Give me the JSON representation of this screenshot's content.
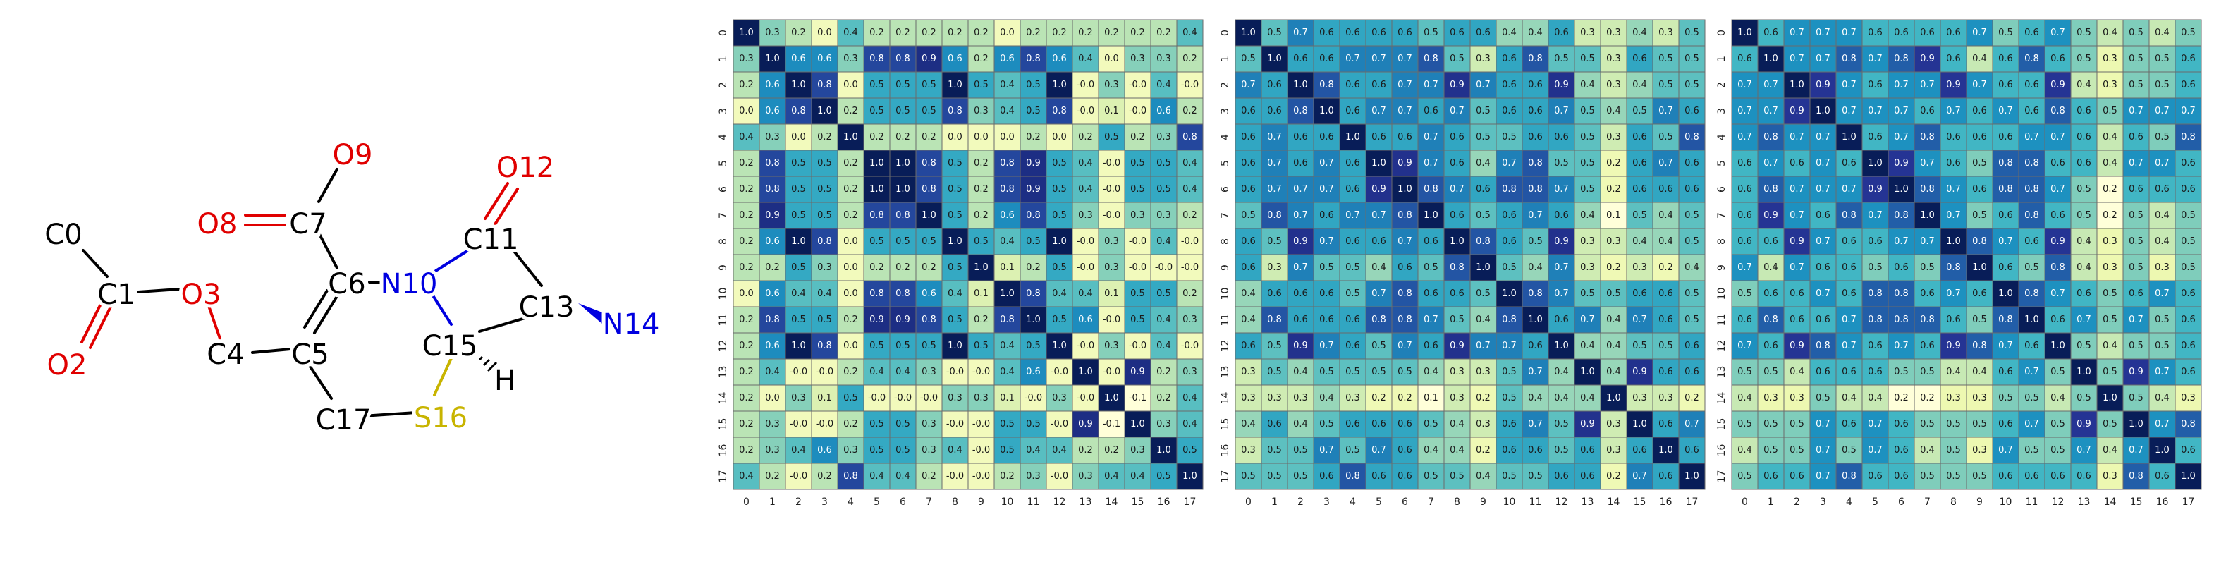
{
  "molecule": {
    "atoms": [
      {
        "label": "C0",
        "color": "#000000"
      },
      {
        "label": "C1",
        "color": "#000000"
      },
      {
        "label": "O2",
        "color": "#e00000"
      },
      {
        "label": "O3",
        "color": "#e00000"
      },
      {
        "label": "C4",
        "color": "#000000"
      },
      {
        "label": "C5",
        "color": "#000000"
      },
      {
        "label": "C6",
        "color": "#000000"
      },
      {
        "label": "C7",
        "color": "#000000"
      },
      {
        "label": "O8",
        "color": "#e00000"
      },
      {
        "label": "O9",
        "color": "#e00000"
      },
      {
        "label": "N10",
        "color": "#0000e0"
      },
      {
        "label": "C11",
        "color": "#000000"
      },
      {
        "label": "O12",
        "color": "#e00000"
      },
      {
        "label": "C13",
        "color": "#000000"
      },
      {
        "label": "N14",
        "color": "#0000e0"
      },
      {
        "label": "C15",
        "color": "#000000"
      },
      {
        "label": "S16",
        "color": "#c8b400"
      },
      {
        "label": "C17",
        "color": "#000000"
      },
      {
        "label": "H",
        "color": "#000000"
      }
    ]
  },
  "chart_data": [
    {
      "type": "heatmap",
      "colormap": "YlGnBu",
      "vmin": -0.1,
      "vmax": 1.0,
      "ticks": [
        "0",
        "1",
        "2",
        "3",
        "4",
        "5",
        "6",
        "7",
        "8",
        "9",
        "10",
        "11",
        "12",
        "13",
        "14",
        "15",
        "16",
        "17"
      ],
      "values": [
        [
          1.0,
          0.3,
          0.2,
          0.0,
          0.4,
          0.2,
          0.2,
          0.2,
          0.2,
          0.2,
          0.0,
          0.2,
          0.2,
          0.2,
          0.2,
          0.2,
          0.2,
          0.4
        ],
        [
          0.3,
          1.0,
          0.6,
          0.6,
          0.3,
          0.8,
          0.8,
          0.9,
          0.6,
          0.2,
          0.6,
          0.8,
          0.6,
          0.4,
          0.0,
          0.3,
          0.3,
          0.2
        ],
        [
          0.2,
          0.6,
          1.0,
          0.8,
          0.0,
          0.5,
          0.5,
          0.5,
          1.0,
          0.5,
          0.4,
          0.5,
          1.0,
          -0.0,
          0.3,
          -0.0,
          0.4,
          -0.0
        ],
        [
          0.0,
          0.6,
          0.8,
          1.0,
          0.2,
          0.5,
          0.5,
          0.5,
          0.8,
          0.3,
          0.4,
          0.5,
          0.8,
          -0.0,
          0.1,
          -0.0,
          0.6,
          0.2
        ],
        [
          0.4,
          0.3,
          0.0,
          0.2,
          1.0,
          0.2,
          0.2,
          0.2,
          0.0,
          0.0,
          0.0,
          0.2,
          0.0,
          0.2,
          0.5,
          0.2,
          0.3,
          0.8
        ],
        [
          0.2,
          0.8,
          0.5,
          0.5,
          0.2,
          1.0,
          1.0,
          0.8,
          0.5,
          0.2,
          0.8,
          0.9,
          0.5,
          0.4,
          -0.0,
          0.5,
          0.5,
          0.4
        ],
        [
          0.2,
          0.8,
          0.5,
          0.5,
          0.2,
          1.0,
          1.0,
          0.8,
          0.5,
          0.2,
          0.8,
          0.9,
          0.5,
          0.4,
          -0.0,
          0.5,
          0.5,
          0.4
        ],
        [
          0.2,
          0.9,
          0.5,
          0.5,
          0.2,
          0.8,
          0.8,
          1.0,
          0.5,
          0.2,
          0.6,
          0.8,
          0.5,
          0.3,
          -0.0,
          0.3,
          0.3,
          0.2
        ],
        [
          0.2,
          0.6,
          1.0,
          0.8,
          0.0,
          0.5,
          0.5,
          0.5,
          1.0,
          0.5,
          0.4,
          0.5,
          1.0,
          -0.0,
          0.3,
          -0.0,
          0.4,
          -0.0
        ],
        [
          0.2,
          0.2,
          0.5,
          0.3,
          0.0,
          0.2,
          0.2,
          0.2,
          0.5,
          1.0,
          0.1,
          0.2,
          0.5,
          -0.0,
          0.3,
          -0.0,
          -0.0,
          -0.0
        ],
        [
          0.0,
          0.6,
          0.4,
          0.4,
          0.0,
          0.8,
          0.8,
          0.6,
          0.4,
          0.1,
          1.0,
          0.8,
          0.4,
          0.4,
          0.1,
          0.5,
          0.5,
          0.2
        ],
        [
          0.2,
          0.8,
          0.5,
          0.5,
          0.2,
          0.9,
          0.9,
          0.8,
          0.5,
          0.2,
          0.8,
          1.0,
          0.5,
          0.6,
          -0.0,
          0.5,
          0.4,
          0.3
        ],
        [
          0.2,
          0.6,
          1.0,
          0.8,
          0.0,
          0.5,
          0.5,
          0.5,
          1.0,
          0.5,
          0.4,
          0.5,
          1.0,
          -0.0,
          0.3,
          -0.0,
          0.4,
          -0.0
        ],
        [
          0.2,
          0.4,
          -0.0,
          -0.0,
          0.2,
          0.4,
          0.4,
          0.3,
          -0.0,
          -0.0,
          0.4,
          0.6,
          -0.0,
          1.0,
          -0.0,
          0.9,
          0.2,
          0.3
        ],
        [
          0.2,
          0.0,
          0.3,
          0.1,
          0.5,
          -0.0,
          -0.0,
          -0.0,
          0.3,
          0.3,
          0.1,
          -0.0,
          0.3,
          -0.0,
          1.0,
          -0.1,
          0.2,
          0.4
        ],
        [
          0.2,
          0.3,
          -0.0,
          -0.0,
          0.2,
          0.5,
          0.5,
          0.3,
          -0.0,
          -0.0,
          0.5,
          0.5,
          -0.0,
          0.9,
          -0.1,
          1.0,
          0.3,
          0.4
        ],
        [
          0.2,
          0.3,
          0.4,
          0.6,
          0.3,
          0.5,
          0.5,
          0.3,
          0.4,
          -0.0,
          0.5,
          0.4,
          0.4,
          0.2,
          0.2,
          0.3,
          1.0,
          0.5
        ],
        [
          0.4,
          0.2,
          -0.0,
          0.2,
          0.8,
          0.4,
          0.4,
          0.2,
          -0.0,
          -0.0,
          0.2,
          0.3,
          -0.0,
          0.3,
          0.4,
          0.4,
          0.5,
          1.0
        ]
      ]
    },
    {
      "type": "heatmap",
      "colormap": "YlGnBu",
      "vmin": 0.1,
      "vmax": 1.0,
      "ticks": [
        "0",
        "1",
        "2",
        "3",
        "4",
        "5",
        "6",
        "7",
        "8",
        "9",
        "10",
        "11",
        "12",
        "13",
        "14",
        "15",
        "16",
        "17"
      ],
      "values": [
        [
          1.0,
          0.5,
          0.7,
          0.6,
          0.6,
          0.6,
          0.6,
          0.5,
          0.6,
          0.6,
          0.4,
          0.4,
          0.6,
          0.3,
          0.3,
          0.4,
          0.3,
          0.5
        ],
        [
          0.5,
          1.0,
          0.6,
          0.6,
          0.7,
          0.7,
          0.7,
          0.8,
          0.5,
          0.3,
          0.6,
          0.8,
          0.5,
          0.5,
          0.3,
          0.6,
          0.5,
          0.5
        ],
        [
          0.7,
          0.6,
          1.0,
          0.8,
          0.6,
          0.6,
          0.7,
          0.7,
          0.9,
          0.7,
          0.6,
          0.6,
          0.9,
          0.4,
          0.3,
          0.4,
          0.5,
          0.5
        ],
        [
          0.6,
          0.6,
          0.8,
          1.0,
          0.6,
          0.7,
          0.7,
          0.6,
          0.7,
          0.5,
          0.6,
          0.6,
          0.7,
          0.5,
          0.4,
          0.5,
          0.7,
          0.6
        ],
        [
          0.6,
          0.7,
          0.6,
          0.6,
          1.0,
          0.6,
          0.6,
          0.7,
          0.6,
          0.5,
          0.5,
          0.6,
          0.6,
          0.5,
          0.3,
          0.6,
          0.5,
          0.8
        ],
        [
          0.6,
          0.7,
          0.6,
          0.7,
          0.6,
          1.0,
          0.9,
          0.7,
          0.6,
          0.4,
          0.7,
          0.8,
          0.5,
          0.5,
          0.2,
          0.6,
          0.7,
          0.6
        ],
        [
          0.6,
          0.7,
          0.7,
          0.7,
          0.6,
          0.9,
          1.0,
          0.8,
          0.7,
          0.6,
          0.8,
          0.8,
          0.7,
          0.5,
          0.2,
          0.6,
          0.6,
          0.6
        ],
        [
          0.5,
          0.8,
          0.7,
          0.6,
          0.7,
          0.7,
          0.8,
          1.0,
          0.6,
          0.5,
          0.6,
          0.7,
          0.6,
          0.4,
          0.1,
          0.5,
          0.4,
          0.5
        ],
        [
          0.6,
          0.5,
          0.9,
          0.7,
          0.6,
          0.6,
          0.7,
          0.6,
          1.0,
          0.8,
          0.6,
          0.5,
          0.9,
          0.3,
          0.3,
          0.4,
          0.4,
          0.5
        ],
        [
          0.6,
          0.3,
          0.7,
          0.5,
          0.5,
          0.4,
          0.6,
          0.5,
          0.8,
          1.0,
          0.5,
          0.4,
          0.7,
          0.3,
          0.2,
          0.3,
          0.2,
          0.4
        ],
        [
          0.4,
          0.6,
          0.6,
          0.6,
          0.5,
          0.7,
          0.8,
          0.6,
          0.6,
          0.5,
          1.0,
          0.8,
          0.7,
          0.5,
          0.5,
          0.6,
          0.6,
          0.5
        ],
        [
          0.4,
          0.8,
          0.6,
          0.6,
          0.6,
          0.8,
          0.8,
          0.7,
          0.5,
          0.4,
          0.8,
          1.0,
          0.6,
          0.7,
          0.4,
          0.7,
          0.6,
          0.5
        ],
        [
          0.6,
          0.5,
          0.9,
          0.7,
          0.6,
          0.5,
          0.7,
          0.6,
          0.9,
          0.7,
          0.7,
          0.6,
          1.0,
          0.4,
          0.4,
          0.5,
          0.5,
          0.6
        ],
        [
          0.3,
          0.5,
          0.4,
          0.5,
          0.5,
          0.5,
          0.5,
          0.4,
          0.3,
          0.3,
          0.5,
          0.7,
          0.4,
          1.0,
          0.4,
          0.9,
          0.6,
          0.6
        ],
        [
          0.3,
          0.3,
          0.3,
          0.4,
          0.3,
          0.2,
          0.2,
          0.1,
          0.3,
          0.2,
          0.5,
          0.4,
          0.4,
          0.4,
          1.0,
          0.3,
          0.3,
          0.2
        ],
        [
          0.4,
          0.6,
          0.4,
          0.5,
          0.6,
          0.6,
          0.6,
          0.5,
          0.4,
          0.3,
          0.6,
          0.7,
          0.5,
          0.9,
          0.3,
          1.0,
          0.6,
          0.7
        ],
        [
          0.3,
          0.5,
          0.5,
          0.7,
          0.5,
          0.7,
          0.6,
          0.4,
          0.4,
          0.2,
          0.6,
          0.6,
          0.5,
          0.6,
          0.3,
          0.6,
          1.0,
          0.6
        ],
        [
          0.5,
          0.5,
          0.5,
          0.6,
          0.8,
          0.6,
          0.6,
          0.5,
          0.5,
          0.4,
          0.5,
          0.5,
          0.6,
          0.6,
          0.2,
          0.7,
          0.6,
          1.0
        ]
      ]
    },
    {
      "type": "heatmap",
      "colormap": "YlGnBu",
      "vmin": 0.2,
      "vmax": 1.0,
      "ticks": [
        "0",
        "1",
        "2",
        "3",
        "4",
        "5",
        "6",
        "7",
        "8",
        "9",
        "10",
        "11",
        "12",
        "13",
        "14",
        "15",
        "16",
        "17"
      ],
      "values": [
        [
          1.0,
          0.6,
          0.7,
          0.7,
          0.7,
          0.6,
          0.6,
          0.6,
          0.6,
          0.7,
          0.5,
          0.6,
          0.7,
          0.5,
          0.4,
          0.5,
          0.4,
          0.5
        ],
        [
          0.6,
          1.0,
          0.7,
          0.7,
          0.8,
          0.7,
          0.8,
          0.9,
          0.6,
          0.4,
          0.6,
          0.8,
          0.6,
          0.5,
          0.3,
          0.5,
          0.5,
          0.6
        ],
        [
          0.7,
          0.7,
          1.0,
          0.9,
          0.7,
          0.6,
          0.7,
          0.7,
          0.9,
          0.7,
          0.6,
          0.6,
          0.9,
          0.4,
          0.3,
          0.5,
          0.5,
          0.6
        ],
        [
          0.7,
          0.7,
          0.9,
          1.0,
          0.7,
          0.7,
          0.7,
          0.6,
          0.7,
          0.6,
          0.7,
          0.6,
          0.8,
          0.6,
          0.5,
          0.7,
          0.7,
          0.7
        ],
        [
          0.7,
          0.8,
          0.7,
          0.7,
          1.0,
          0.6,
          0.7,
          0.8,
          0.6,
          0.6,
          0.6,
          0.7,
          0.7,
          0.6,
          0.4,
          0.6,
          0.5,
          0.8
        ],
        [
          0.6,
          0.7,
          0.6,
          0.7,
          0.6,
          1.0,
          0.9,
          0.7,
          0.6,
          0.5,
          0.8,
          0.8,
          0.6,
          0.6,
          0.4,
          0.7,
          0.7,
          0.6
        ],
        [
          0.6,
          0.8,
          0.7,
          0.7,
          0.7,
          0.9,
          1.0,
          0.8,
          0.7,
          0.6,
          0.8,
          0.8,
          0.7,
          0.5,
          0.2,
          0.6,
          0.6,
          0.6
        ],
        [
          0.6,
          0.9,
          0.7,
          0.6,
          0.8,
          0.7,
          0.8,
          1.0,
          0.7,
          0.5,
          0.6,
          0.8,
          0.6,
          0.5,
          0.2,
          0.5,
          0.4,
          0.5
        ],
        [
          0.6,
          0.6,
          0.9,
          0.7,
          0.6,
          0.6,
          0.7,
          0.7,
          1.0,
          0.8,
          0.7,
          0.6,
          0.9,
          0.4,
          0.3,
          0.5,
          0.4,
          0.5
        ],
        [
          0.7,
          0.4,
          0.7,
          0.6,
          0.6,
          0.5,
          0.6,
          0.5,
          0.8,
          1.0,
          0.6,
          0.5,
          0.8,
          0.4,
          0.3,
          0.5,
          0.3,
          0.5
        ],
        [
          0.5,
          0.6,
          0.6,
          0.7,
          0.6,
          0.8,
          0.8,
          0.6,
          0.7,
          0.6,
          1.0,
          0.8,
          0.7,
          0.6,
          0.5,
          0.6,
          0.7,
          0.6
        ],
        [
          0.6,
          0.8,
          0.6,
          0.6,
          0.7,
          0.8,
          0.8,
          0.8,
          0.6,
          0.5,
          0.8,
          1.0,
          0.6,
          0.7,
          0.5,
          0.7,
          0.5,
          0.6
        ],
        [
          0.7,
          0.6,
          0.9,
          0.8,
          0.7,
          0.6,
          0.7,
          0.6,
          0.9,
          0.8,
          0.7,
          0.6,
          1.0,
          0.5,
          0.4,
          0.5,
          0.5,
          0.6
        ],
        [
          0.5,
          0.5,
          0.4,
          0.6,
          0.6,
          0.6,
          0.5,
          0.5,
          0.4,
          0.4,
          0.6,
          0.7,
          0.5,
          1.0,
          0.5,
          0.9,
          0.7,
          0.6
        ],
        [
          0.4,
          0.3,
          0.3,
          0.5,
          0.4,
          0.4,
          0.2,
          0.2,
          0.3,
          0.3,
          0.5,
          0.5,
          0.4,
          0.5,
          1.0,
          0.5,
          0.4,
          0.3
        ],
        [
          0.5,
          0.5,
          0.5,
          0.7,
          0.6,
          0.7,
          0.6,
          0.5,
          0.5,
          0.5,
          0.6,
          0.7,
          0.5,
          0.9,
          0.5,
          1.0,
          0.7,
          0.8
        ],
        [
          0.4,
          0.5,
          0.5,
          0.7,
          0.5,
          0.7,
          0.6,
          0.4,
          0.5,
          0.3,
          0.7,
          0.5,
          0.5,
          0.7,
          0.4,
          0.7,
          1.0,
          0.6
        ],
        [
          0.5,
          0.6,
          0.6,
          0.7,
          0.8,
          0.6,
          0.6,
          0.5,
          0.5,
          0.5,
          0.6,
          0.6,
          0.6,
          0.6,
          0.3,
          0.8,
          0.6,
          1.0
        ]
      ]
    }
  ]
}
